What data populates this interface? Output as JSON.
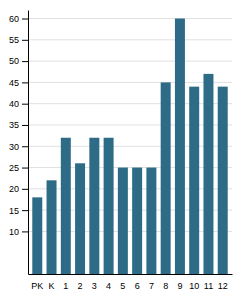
{
  "chart_data": {
    "type": "bar",
    "categories": [
      "PK",
      "K",
      "1",
      "2",
      "3",
      "4",
      "5",
      "6",
      "7",
      "8",
      "9",
      "10",
      "11",
      "12"
    ],
    "values": [
      18,
      22,
      32,
      26,
      32,
      32,
      25,
      25,
      25,
      45,
      60,
      44,
      47,
      44
    ],
    "color": "#2e6b87",
    "ylim": [
      0,
      62
    ],
    "yticks": [
      10,
      15,
      20,
      25,
      30,
      35,
      40,
      45,
      50,
      55,
      60
    ],
    "grid": true
  }
}
